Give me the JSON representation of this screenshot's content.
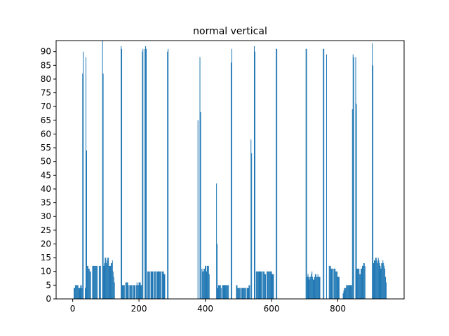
{
  "chart_data": {
    "type": "bar",
    "title": "normal vertical",
    "xlabel": "",
    "ylabel": "",
    "xlim": [
      -50,
      1000
    ],
    "ylim": [
      0,
      94
    ],
    "grid": false,
    "bar_color": "#1f77b4",
    "x_ticks": [
      0,
      200,
      400,
      600,
      800
    ],
    "y_ticks": [
      0,
      5,
      10,
      15,
      20,
      25,
      30,
      35,
      40,
      45,
      50,
      55,
      60,
      65,
      70,
      75,
      80,
      85,
      90
    ],
    "bars": [
      {
        "x": 4,
        "y": 4
      },
      {
        "x": 6,
        "y": 4
      },
      {
        "x": 8,
        "y": 5
      },
      {
        "x": 10,
        "y": 5
      },
      {
        "x": 12,
        "y": 5
      },
      {
        "x": 14,
        "y": 5
      },
      {
        "x": 16,
        "y": 5
      },
      {
        "x": 18,
        "y": 4
      },
      {
        "x": 20,
        "y": 4
      },
      {
        "x": 22,
        "y": 4
      },
      {
        "x": 24,
        "y": 5
      },
      {
        "x": 26,
        "y": 5
      },
      {
        "x": 28,
        "y": 4
      },
      {
        "x": 30,
        "y": 82
      },
      {
        "x": 32,
        "y": 90
      },
      {
        "x": 38,
        "y": 4
      },
      {
        "x": 40,
        "y": 88
      },
      {
        "x": 42,
        "y": 54
      },
      {
        "x": 44,
        "y": 12
      },
      {
        "x": 46,
        "y": 12
      },
      {
        "x": 48,
        "y": 11
      },
      {
        "x": 50,
        "y": 11
      },
      {
        "x": 52,
        "y": 10
      },
      {
        "x": 54,
        "y": 10
      },
      {
        "x": 60,
        "y": 12
      },
      {
        "x": 62,
        "y": 12
      },
      {
        "x": 64,
        "y": 12
      },
      {
        "x": 66,
        "y": 12
      },
      {
        "x": 68,
        "y": 12
      },
      {
        "x": 70,
        "y": 12
      },
      {
        "x": 72,
        "y": 12
      },
      {
        "x": 74,
        "y": 12
      },
      {
        "x": 80,
        "y": 12
      },
      {
        "x": 82,
        "y": 12
      },
      {
        "x": 84,
        "y": 12
      },
      {
        "x": 90,
        "y": 94
      },
      {
        "x": 92,
        "y": 82
      },
      {
        "x": 94,
        "y": 12
      },
      {
        "x": 96,
        "y": 13
      },
      {
        "x": 98,
        "y": 15
      },
      {
        "x": 100,
        "y": 15
      },
      {
        "x": 102,
        "y": 13
      },
      {
        "x": 104,
        "y": 14
      },
      {
        "x": 106,
        "y": 15
      },
      {
        "x": 108,
        "y": 15
      },
      {
        "x": 110,
        "y": 12
      },
      {
        "x": 112,
        "y": 12
      },
      {
        "x": 114,
        "y": 12
      },
      {
        "x": 116,
        "y": 13
      },
      {
        "x": 118,
        "y": 13
      },
      {
        "x": 120,
        "y": 14
      },
      {
        "x": 122,
        "y": 10
      },
      {
        "x": 124,
        "y": 8
      },
      {
        "x": 126,
        "y": 6
      },
      {
        "x": 146,
        "y": 92
      },
      {
        "x": 148,
        "y": 91
      },
      {
        "x": 150,
        "y": 5
      },
      {
        "x": 152,
        "y": 5
      },
      {
        "x": 154,
        "y": 5
      },
      {
        "x": 156,
        "y": 5
      },
      {
        "x": 160,
        "y": 6
      },
      {
        "x": 162,
        "y": 6
      },
      {
        "x": 164,
        "y": 6
      },
      {
        "x": 166,
        "y": 6
      },
      {
        "x": 168,
        "y": 5
      },
      {
        "x": 172,
        "y": 5
      },
      {
        "x": 174,
        "y": 5
      },
      {
        "x": 176,
        "y": 5
      },
      {
        "x": 178,
        "y": 5
      },
      {
        "x": 180,
        "y": 5
      },
      {
        "x": 184,
        "y": 5
      },
      {
        "x": 186,
        "y": 5
      },
      {
        "x": 188,
        "y": 5
      },
      {
        "x": 192,
        "y": 5
      },
      {
        "x": 194,
        "y": 6
      },
      {
        "x": 196,
        "y": 5
      },
      {
        "x": 198,
        "y": 5
      },
      {
        "x": 200,
        "y": 6
      },
      {
        "x": 202,
        "y": 6
      },
      {
        "x": 204,
        "y": 6
      },
      {
        "x": 206,
        "y": 5
      },
      {
        "x": 208,
        "y": 5
      },
      {
        "x": 210,
        "y": 90
      },
      {
        "x": 212,
        "y": 91
      },
      {
        "x": 218,
        "y": 91
      },
      {
        "x": 220,
        "y": 92
      },
      {
        "x": 222,
        "y": 91
      },
      {
        "x": 226,
        "y": 10
      },
      {
        "x": 228,
        "y": 10
      },
      {
        "x": 230,
        "y": 10
      },
      {
        "x": 232,
        "y": 10
      },
      {
        "x": 236,
        "y": 10
      },
      {
        "x": 238,
        "y": 10
      },
      {
        "x": 240,
        "y": 10
      },
      {
        "x": 242,
        "y": 10
      },
      {
        "x": 246,
        "y": 10
      },
      {
        "x": 248,
        "y": 10
      },
      {
        "x": 250,
        "y": 10
      },
      {
        "x": 254,
        "y": 10
      },
      {
        "x": 256,
        "y": 10
      },
      {
        "x": 258,
        "y": 10
      },
      {
        "x": 260,
        "y": 10
      },
      {
        "x": 262,
        "y": 10
      },
      {
        "x": 264,
        "y": 10
      },
      {
        "x": 266,
        "y": 10
      },
      {
        "x": 270,
        "y": 10
      },
      {
        "x": 272,
        "y": 10
      },
      {
        "x": 274,
        "y": 10
      },
      {
        "x": 276,
        "y": 9
      },
      {
        "x": 278,
        "y": 9
      },
      {
        "x": 286,
        "y": 90
      },
      {
        "x": 288,
        "y": 91
      },
      {
        "x": 378,
        "y": 65
      },
      {
        "x": 384,
        "y": 88
      },
      {
        "x": 386,
        "y": 68
      },
      {
        "x": 390,
        "y": 11
      },
      {
        "x": 392,
        "y": 10
      },
      {
        "x": 394,
        "y": 11
      },
      {
        "x": 396,
        "y": 10
      },
      {
        "x": 398,
        "y": 11
      },
      {
        "x": 400,
        "y": 12
      },
      {
        "x": 402,
        "y": 12
      },
      {
        "x": 404,
        "y": 10
      },
      {
        "x": 406,
        "y": 12
      },
      {
        "x": 408,
        "y": 12
      },
      {
        "x": 410,
        "y": 12
      },
      {
        "x": 412,
        "y": 9
      },
      {
        "x": 434,
        "y": 42
      },
      {
        "x": 436,
        "y": 20
      },
      {
        "x": 438,
        "y": 4
      },
      {
        "x": 440,
        "y": 5
      },
      {
        "x": 442,
        "y": 5
      },
      {
        "x": 444,
        "y": 5
      },
      {
        "x": 446,
        "y": 5
      },
      {
        "x": 448,
        "y": 4
      },
      {
        "x": 452,
        "y": 5
      },
      {
        "x": 454,
        "y": 5
      },
      {
        "x": 456,
        "y": 5
      },
      {
        "x": 458,
        "y": 5
      },
      {
        "x": 460,
        "y": 5
      },
      {
        "x": 462,
        "y": 5
      },
      {
        "x": 464,
        "y": 5
      },
      {
        "x": 466,
        "y": 5
      },
      {
        "x": 468,
        "y": 5
      },
      {
        "x": 470,
        "y": 5
      },
      {
        "x": 478,
        "y": 86
      },
      {
        "x": 480,
        "y": 91
      },
      {
        "x": 494,
        "y": 5
      },
      {
        "x": 496,
        "y": 5
      },
      {
        "x": 498,
        "y": 4
      },
      {
        "x": 500,
        "y": 4
      },
      {
        "x": 502,
        "y": 4
      },
      {
        "x": 504,
        "y": 4
      },
      {
        "x": 506,
        "y": 4
      },
      {
        "x": 510,
        "y": 4
      },
      {
        "x": 512,
        "y": 4
      },
      {
        "x": 514,
        "y": 4
      },
      {
        "x": 516,
        "y": 4
      },
      {
        "x": 518,
        "y": 4
      },
      {
        "x": 520,
        "y": 4
      },
      {
        "x": 522,
        "y": 4
      },
      {
        "x": 526,
        "y": 4
      },
      {
        "x": 528,
        "y": 4
      },
      {
        "x": 530,
        "y": 4
      },
      {
        "x": 532,
        "y": 5
      },
      {
        "x": 534,
        "y": 5
      },
      {
        "x": 538,
        "y": 58
      },
      {
        "x": 540,
        "y": 53
      },
      {
        "x": 548,
        "y": 92
      },
      {
        "x": 550,
        "y": 90
      },
      {
        "x": 554,
        "y": 10
      },
      {
        "x": 556,
        "y": 10
      },
      {
        "x": 558,
        "y": 10
      },
      {
        "x": 560,
        "y": 10
      },
      {
        "x": 562,
        "y": 10
      },
      {
        "x": 564,
        "y": 10
      },
      {
        "x": 566,
        "y": 10
      },
      {
        "x": 568,
        "y": 10
      },
      {
        "x": 570,
        "y": 10
      },
      {
        "x": 574,
        "y": 10
      },
      {
        "x": 576,
        "y": 10
      },
      {
        "x": 578,
        "y": 10
      },
      {
        "x": 580,
        "y": 9
      },
      {
        "x": 582,
        "y": 9
      },
      {
        "x": 586,
        "y": 10
      },
      {
        "x": 588,
        "y": 10
      },
      {
        "x": 590,
        "y": 10
      },
      {
        "x": 592,
        "y": 10
      },
      {
        "x": 594,
        "y": 10
      },
      {
        "x": 596,
        "y": 10
      },
      {
        "x": 598,
        "y": 10
      },
      {
        "x": 600,
        "y": 10
      },
      {
        "x": 602,
        "y": 9
      },
      {
        "x": 604,
        "y": 9
      },
      {
        "x": 606,
        "y": 9
      },
      {
        "x": 614,
        "y": 91
      },
      {
        "x": 616,
        "y": 91
      },
      {
        "x": 704,
        "y": 91
      },
      {
        "x": 706,
        "y": 91
      },
      {
        "x": 708,
        "y": 8
      },
      {
        "x": 710,
        "y": 9
      },
      {
        "x": 712,
        "y": 8
      },
      {
        "x": 714,
        "y": 7
      },
      {
        "x": 716,
        "y": 8
      },
      {
        "x": 718,
        "y": 8
      },
      {
        "x": 720,
        "y": 9
      },
      {
        "x": 722,
        "y": 10
      },
      {
        "x": 724,
        "y": 8
      },
      {
        "x": 726,
        "y": 7
      },
      {
        "x": 728,
        "y": 7
      },
      {
        "x": 730,
        "y": 8
      },
      {
        "x": 732,
        "y": 9
      },
      {
        "x": 734,
        "y": 9
      },
      {
        "x": 736,
        "y": 8
      },
      {
        "x": 738,
        "y": 8
      },
      {
        "x": 740,
        "y": 9
      },
      {
        "x": 742,
        "y": 8
      },
      {
        "x": 744,
        "y": 8
      },
      {
        "x": 746,
        "y": 8
      },
      {
        "x": 756,
        "y": 91
      },
      {
        "x": 758,
        "y": 91
      },
      {
        "x": 766,
        "y": 89
      },
      {
        "x": 774,
        "y": 12
      },
      {
        "x": 776,
        "y": 12
      },
      {
        "x": 778,
        "y": 12
      },
      {
        "x": 780,
        "y": 11
      },
      {
        "x": 782,
        "y": 11
      },
      {
        "x": 784,
        "y": 11
      },
      {
        "x": 788,
        "y": 11
      },
      {
        "x": 790,
        "y": 11
      },
      {
        "x": 792,
        "y": 11
      },
      {
        "x": 794,
        "y": 10
      },
      {
        "x": 796,
        "y": 10
      },
      {
        "x": 798,
        "y": 10
      },
      {
        "x": 800,
        "y": 8
      },
      {
        "x": 802,
        "y": 8
      },
      {
        "x": 804,
        "y": 8
      },
      {
        "x": 816,
        "y": 2
      },
      {
        "x": 818,
        "y": 3
      },
      {
        "x": 820,
        "y": 4
      },
      {
        "x": 822,
        "y": 4
      },
      {
        "x": 824,
        "y": 4
      },
      {
        "x": 826,
        "y": 5
      },
      {
        "x": 828,
        "y": 5
      },
      {
        "x": 830,
        "y": 5
      },
      {
        "x": 832,
        "y": 5
      },
      {
        "x": 834,
        "y": 5
      },
      {
        "x": 836,
        "y": 5
      },
      {
        "x": 838,
        "y": 5
      },
      {
        "x": 840,
        "y": 5
      },
      {
        "x": 842,
        "y": 5
      },
      {
        "x": 844,
        "y": 69
      },
      {
        "x": 846,
        "y": 89
      },
      {
        "x": 848,
        "y": 88
      },
      {
        "x": 854,
        "y": 88
      },
      {
        "x": 856,
        "y": 71
      },
      {
        "x": 858,
        "y": 11
      },
      {
        "x": 860,
        "y": 11
      },
      {
        "x": 862,
        "y": 11
      },
      {
        "x": 864,
        "y": 11
      },
      {
        "x": 866,
        "y": 9
      },
      {
        "x": 868,
        "y": 9
      },
      {
        "x": 870,
        "y": 11
      },
      {
        "x": 872,
        "y": 11
      },
      {
        "x": 874,
        "y": 12
      },
      {
        "x": 876,
        "y": 12
      },
      {
        "x": 878,
        "y": 13
      },
      {
        "x": 880,
        "y": 13
      },
      {
        "x": 882,
        "y": 12
      },
      {
        "x": 904,
        "y": 93
      },
      {
        "x": 906,
        "y": 85
      },
      {
        "x": 908,
        "y": 13
      },
      {
        "x": 910,
        "y": 14
      },
      {
        "x": 912,
        "y": 14
      },
      {
        "x": 914,
        "y": 15
      },
      {
        "x": 916,
        "y": 15
      },
      {
        "x": 918,
        "y": 14
      },
      {
        "x": 920,
        "y": 13
      },
      {
        "x": 922,
        "y": 15
      },
      {
        "x": 924,
        "y": 14
      },
      {
        "x": 926,
        "y": 13
      },
      {
        "x": 928,
        "y": 12
      },
      {
        "x": 930,
        "y": 11
      },
      {
        "x": 932,
        "y": 13
      },
      {
        "x": 934,
        "y": 13
      },
      {
        "x": 936,
        "y": 14
      },
      {
        "x": 938,
        "y": 13
      },
      {
        "x": 940,
        "y": 12
      },
      {
        "x": 942,
        "y": 11
      },
      {
        "x": 944,
        "y": 8
      },
      {
        "x": 946,
        "y": 6
      }
    ]
  }
}
